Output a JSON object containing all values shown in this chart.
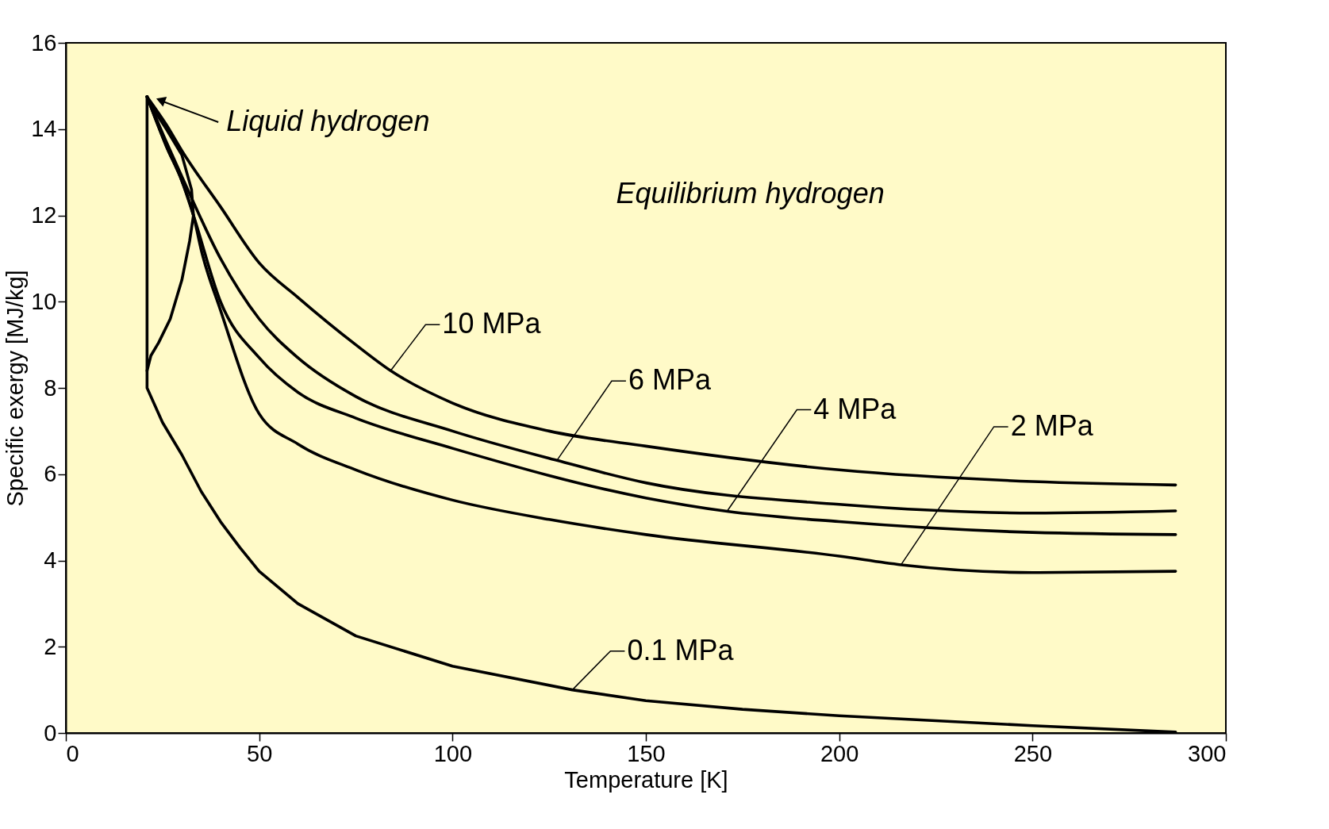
{
  "chart_data": {
    "type": "line",
    "xlabel": "Temperature [K]",
    "ylabel": "Specific exergy [MJ/kg]",
    "xlim": [
      0,
      300
    ],
    "ylim": [
      0,
      16
    ],
    "xticks": [
      0,
      50,
      100,
      150,
      200,
      250,
      300
    ],
    "yticks": [
      0,
      2,
      4,
      6,
      8,
      10,
      12,
      14,
      16
    ],
    "grid": false,
    "marker": "none",
    "line_style": "solid",
    "series": [
      {
        "color": "#000000",
        "x": [
          21,
          22,
          24,
          27,
          30,
          32,
          33,
          32.5,
          30,
          26,
          22,
          21
        ],
        "values": [
          8.4,
          8.75,
          9.05,
          9.6,
          10.5,
          11.4,
          12.0,
          12.6,
          13.4,
          14.0,
          14.55,
          14.75
        ]
      },
      {
        "color": "#000000",
        "x": [
          21,
          21,
          25,
          30,
          35,
          40,
          45,
          50,
          60,
          75,
          100,
          131,
          150,
          175,
          200,
          250,
          287
        ],
        "values": [
          14.75,
          8.0,
          7.2,
          6.45,
          5.6,
          4.9,
          4.3,
          3.75,
          3.0,
          2.25,
          1.55,
          1.0,
          0.75,
          0.55,
          0.4,
          0.17,
          0.02
        ]
      },
      {
        "color": "#000000",
        "x": [
          21,
          26,
          30,
          33,
          35,
          40,
          50,
          60,
          75,
          100,
          125,
          150,
          200,
          216,
          250,
          287
        ],
        "values": [
          14.75,
          13.6,
          12.8,
          12.0,
          11.2,
          9.8,
          7.4,
          6.7,
          6.1,
          5.4,
          4.95,
          4.6,
          4.1,
          3.9,
          3.72,
          3.75
        ]
      },
      {
        "color": "#000000",
        "x": [
          21,
          26,
          30,
          33,
          40,
          50,
          60,
          75,
          100,
          150,
          171,
          200,
          250,
          287
        ],
        "values": [
          14.75,
          13.6,
          12.8,
          12.0,
          10.0,
          8.7,
          7.9,
          7.3,
          6.6,
          5.45,
          5.14,
          4.9,
          4.65,
          4.6
        ]
      },
      {
        "color": "#000000",
        "x": [
          21,
          26,
          30,
          40,
          50,
          60,
          75,
          100,
          127,
          150,
          200,
          250,
          287
        ],
        "values": [
          14.75,
          13.7,
          12.9,
          11.0,
          9.6,
          8.7,
          7.8,
          7.0,
          6.32,
          5.8,
          5.3,
          5.1,
          5.15
        ]
      },
      {
        "color": "#000000",
        "x": [
          21,
          26,
          30,
          40,
          50,
          60,
          75,
          84,
          100,
          125,
          150,
          200,
          250,
          287
        ],
        "values": [
          14.75,
          14.1,
          13.5,
          12.2,
          10.9,
          10.1,
          9.0,
          8.4,
          7.65,
          7.0,
          6.65,
          6.1,
          5.83,
          5.75
        ]
      }
    ],
    "annotations": [
      {
        "text": "Liquid hydrogen",
        "x": 22,
        "y": 14.75
      },
      {
        "text": "10 MPa",
        "x": 84,
        "y": 8.4
      },
      {
        "text": "6 MPa",
        "x": 127,
        "y": 6.32
      },
      {
        "text": "4 MPa",
        "x": 171,
        "y": 5.14
      },
      {
        "text": "2 MPa",
        "x": 216,
        "y": 3.9
      },
      {
        "text": "0.1 MPa",
        "x": 131,
        "y": 1.0
      },
      "Equilibrium hydrogen"
    ]
  }
}
